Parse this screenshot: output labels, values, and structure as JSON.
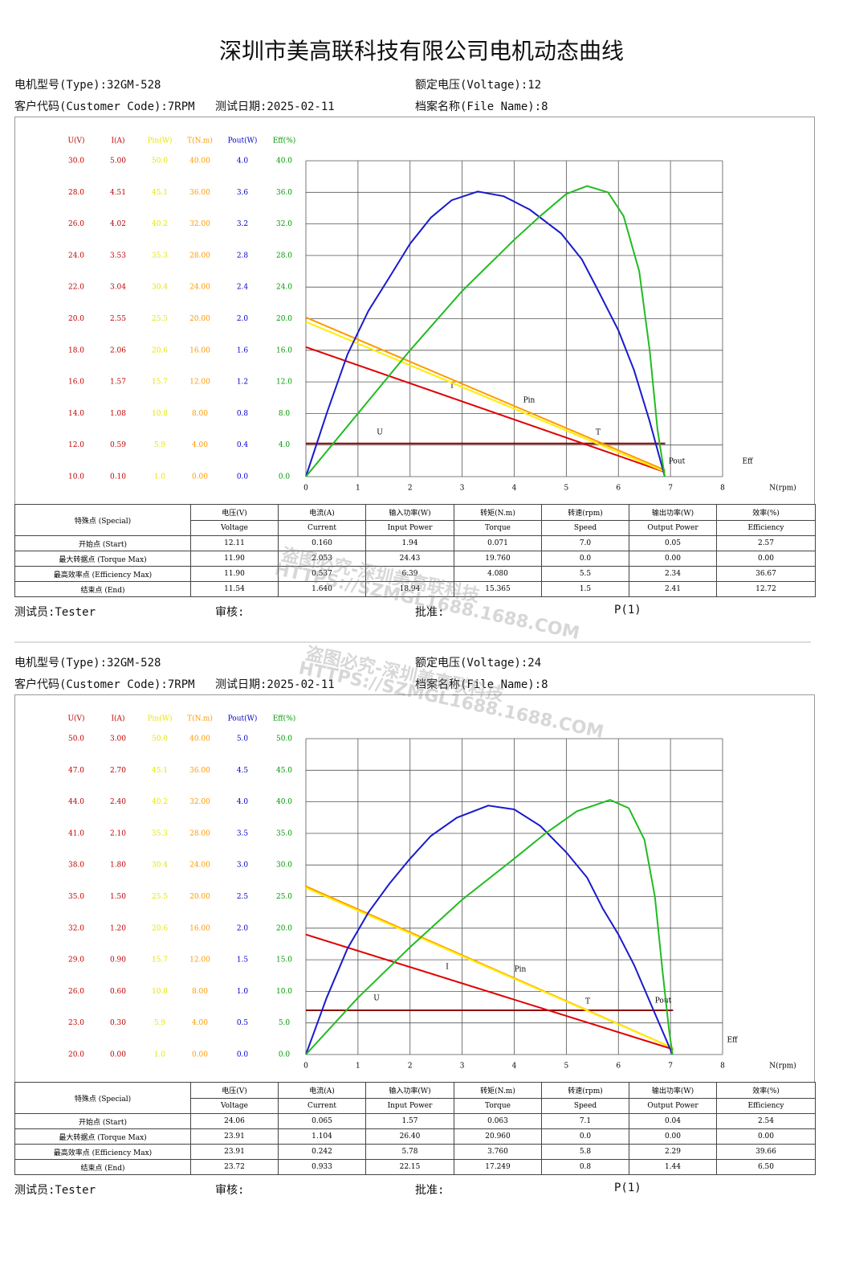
{
  "title": "深圳市美高联科技有限公司电机动态曲线",
  "watermark": [
    "盗图必究-深圳美高联科技",
    "HTTPS://SZMGL1688.1688.COM"
  ],
  "reports": [
    {
      "info": {
        "type": "电机型号(Type):32GM-528",
        "voltage": "额定电压(Voltage):12",
        "customer": "客户代码(Customer Code):7RPM",
        "date": "测试日期:2025-02-11",
        "file": "档案名称(File Name):8"
      },
      "table": {
        "header": [
          "特殊点 (Special)",
          "电压(V)",
          "电流(A)",
          "输入功率(W)",
          "转矩(N.m)",
          "转速(rpm)",
          "输出功率(W)",
          "效率(%)"
        ],
        "subheader": [
          "Voltage",
          "Current",
          "Input Power",
          "Torque",
          "Speed",
          "Output Power",
          "Efficiency"
        ],
        "rows": [
          [
            "开始点 (Start)",
            "12.11",
            "0.160",
            "1.94",
            "0.071",
            "7.0",
            "0.05",
            "2.57"
          ],
          [
            "最大转据点 (Torque Max)",
            "11.90",
            "2.053",
            "24.43",
            "19.760",
            "0.0",
            "0.00",
            "0.00"
          ],
          [
            "最高效率点 (Efficiency Max)",
            "11.90",
            "0.537",
            "6.39",
            "4.080",
            "5.5",
            "2.34",
            "36.67"
          ],
          [
            "结束点 (End)",
            "11.54",
            "1.640",
            "18.94",
            "15.365",
            "1.5",
            "2.41",
            "12.72"
          ]
        ]
      },
      "footer": [
        "测试员:Tester",
        "审核:",
        "批准:",
        "P(1)"
      ]
    },
    {
      "info": {
        "type": "电机型号(Type):32GM-528",
        "voltage": "额定电压(Voltage):24",
        "customer": "客户代码(Customer Code):7RPM",
        "date": "测试日期:2025-02-11",
        "file": "档案名称(File Name):8"
      },
      "table": {
        "header": [
          "特殊点 (Special)",
          "电压(V)",
          "电流(A)",
          "输入功率(W)",
          "转矩(N.m)",
          "转速(rpm)",
          "输出功率(W)",
          "效率(%)"
        ],
        "subheader": [
          "Voltage",
          "Current",
          "Input Power",
          "Torque",
          "Speed",
          "Output Power",
          "Efficiency"
        ],
        "rows": [
          [
            "开始点 (Start)",
            "24.06",
            "0.065",
            "1.57",
            "0.063",
            "7.1",
            "0.04",
            "2.54"
          ],
          [
            "最大转据点 (Torque Max)",
            "23.91",
            "1.104",
            "26.40",
            "20.960",
            "0.0",
            "0.00",
            "0.00"
          ],
          [
            "最高效率点 (Efficiency Max)",
            "23.91",
            "0.242",
            "5.78",
            "3.760",
            "5.8",
            "2.29",
            "39.66"
          ],
          [
            "结束点 (End)",
            "23.72",
            "0.933",
            "22.15",
            "17.249",
            "0.8",
            "1.44",
            "6.50"
          ]
        ]
      },
      "footer": [
        "测试员:Tester",
        "审核:",
        "批准:",
        "P(1)"
      ]
    }
  ],
  "chart_data": [
    {
      "type": "line",
      "grid": true,
      "x_label": "N(rpm)",
      "xlim": [
        0,
        8
      ],
      "xticks": [
        0,
        1,
        2,
        3,
        4,
        5,
        6,
        7,
        8
      ],
      "axes": [
        {
          "name": "U(V)",
          "color": "#c00000",
          "ylim": [
            10,
            30
          ],
          "yticks": [
            {
              "value": 10,
              "label": "10.0"
            },
            {
              "value": 12,
              "label": "12.0"
            },
            {
              "value": 14,
              "label": "14.0"
            },
            {
              "value": 16,
              "label": "16.0"
            },
            {
              "value": 18,
              "label": "18.0"
            },
            {
              "value": 20,
              "label": "20.0"
            },
            {
              "value": 22,
              "label": "22.0"
            },
            {
              "value": 24,
              "label": "24.0"
            },
            {
              "value": 26,
              "label": "26.0"
            },
            {
              "value": 28,
              "label": "28.0"
            },
            {
              "value": 30,
              "label": "30.0"
            }
          ]
        },
        {
          "name": "I(A)",
          "color": "#c00000",
          "ylim": [
            0.1,
            5
          ],
          "yticks": [
            {
              "value": 0.1,
              "label": "0.10"
            },
            0.59,
            1.08,
            1.57,
            2.06,
            2.55,
            3.04,
            3.53,
            4.02,
            4.51,
            {
              "value": 5,
              "label": "5.00"
            }
          ]
        },
        {
          "name": "Pin(W)",
          "color": "#e6e600",
          "ylim": [
            1,
            50
          ],
          "yticks": [
            {
              "value": 1,
              "label": "1.0"
            },
            5.9,
            10.8,
            15.7,
            20.6,
            25.5,
            30.4,
            35.3,
            40.2,
            45.1,
            {
              "value": 50,
              "label": "50.0"
            }
          ]
        },
        {
          "name": "T(N.m)",
          "color": "#ff9900",
          "ylim": [
            0,
            40
          ],
          "yticks": [
            {
              "value": 0,
              "label": "0.00"
            },
            {
              "value": 4,
              "label": "4.00"
            },
            {
              "value": 8,
              "label": "8.00"
            },
            {
              "value": 12,
              "label": "12.00"
            },
            {
              "value": 16,
              "label": "16.00"
            },
            {
              "value": 20,
              "label": "20.00"
            },
            {
              "value": 24,
              "label": "24.00"
            },
            {
              "value": 28,
              "label": "28.00"
            },
            {
              "value": 32,
              "label": "32.00"
            },
            {
              "value": 36,
              "label": "36.00"
            },
            {
              "value": 40,
              "label": "40.00"
            }
          ]
        },
        {
          "name": "Pout(W)",
          "color": "#0000cc",
          "ylim": [
            0,
            4
          ],
          "yticks": [
            {
              "value": 0,
              "label": "0.0"
            },
            0.4,
            0.8,
            1.2,
            1.6,
            {
              "value": 2,
              "label": "2.0"
            },
            2.4,
            2.8,
            3.2,
            3.6,
            {
              "value": 4,
              "label": "4.0"
            }
          ]
        },
        {
          "name": "Eff(%)",
          "color": "#009900",
          "ylim": [
            0,
            40
          ],
          "yticks": [
            {
              "value": 0,
              "label": "0.0"
            },
            {
              "value": 4,
              "label": "4.0"
            },
            {
              "value": 8,
              "label": "8.0"
            },
            {
              "value": 12,
              "label": "12.0"
            },
            {
              "value": 16,
              "label": "16.0"
            },
            {
              "value": 20,
              "label": "20.0"
            },
            {
              "value": 24,
              "label": "24.0"
            },
            {
              "value": 28,
              "label": "28.0"
            },
            {
              "value": 32,
              "label": "32.0"
            },
            {
              "value": 36,
              "label": "36.0"
            },
            {
              "value": 40,
              "label": "40.0"
            }
          ]
        }
      ],
      "series": [
        {
          "name": "U",
          "color": "#8b0000",
          "x": [
            0,
            6.9
          ],
          "values": [
            12.1,
            12.1
          ]
        },
        {
          "name": "I",
          "color": "#e00000",
          "x": [
            0,
            6.9
          ],
          "values": [
            2.11,
            0.17
          ]
        },
        {
          "name": "Pin",
          "color": "#ff9900",
          "x": [
            0,
            6.9
          ],
          "values": [
            25.7,
            2.0
          ]
        },
        {
          "name": "T",
          "color": "#ffee00",
          "x": [
            0,
            6.9
          ],
          "values": [
            19.6,
            0.6
          ]
        },
        {
          "name": "Pout",
          "color": "#1a1acc",
          "x": [
            0,
            0.4,
            0.8,
            1.2,
            1.6,
            2.0,
            2.4,
            2.8,
            3.3,
            3.8,
            4.3,
            4.9,
            5.3,
            5.6,
            6.0,
            6.3,
            6.6,
            6.89
          ],
          "values": [
            0,
            0.8,
            1.55,
            2.1,
            2.52,
            2.95,
            3.28,
            3.5,
            3.61,
            3.55,
            3.38,
            3.08,
            2.75,
            2.37,
            1.85,
            1.35,
            0.7,
            0
          ]
        },
        {
          "name": "Eff",
          "color": "#22bb22",
          "x": [
            0,
            1,
            2,
            3,
            4,
            4.5,
            5,
            5.4,
            5.8,
            6.1,
            6.4,
            6.6,
            6.75,
            6.89
          ],
          "values": [
            0,
            8,
            16,
            23.5,
            30,
            33,
            35.8,
            36.8,
            36,
            33,
            26,
            16,
            6,
            0
          ]
        }
      ]
    },
    {
      "type": "line",
      "grid": true,
      "x_label": "N(rpm)",
      "xlim": [
        0,
        8
      ],
      "xticks": [
        0,
        1,
        2,
        3,
        4,
        5,
        6,
        7,
        8
      ],
      "axes": [
        {
          "name": "U(V)",
          "color": "#c00000",
          "ylim": [
            20,
            50
          ],
          "yticks": [
            {
              "value": 20,
              "label": "20.0"
            },
            {
              "value": 23,
              "label": "23.0"
            },
            {
              "value": 26,
              "label": "26.0"
            },
            {
              "value": 29,
              "label": "29.0"
            },
            {
              "value": 32,
              "label": "32.0"
            },
            {
              "value": 35,
              "label": "35.0"
            },
            {
              "value": 38,
              "label": "38.0"
            },
            {
              "value": 41,
              "label": "41.0"
            },
            {
              "value": 44,
              "label": "44.0"
            },
            {
              "value": 47,
              "label": "47.0"
            },
            {
              "value": 50,
              "label": "50.0"
            }
          ]
        },
        {
          "name": "I(A)",
          "color": "#c00000",
          "ylim": [
            0,
            3
          ],
          "yticks": [
            {
              "value": 0,
              "label": "0.00"
            },
            {
              "value": 0.3,
              "label": "0.30"
            },
            {
              "value": 0.6,
              "label": "0.60"
            },
            {
              "value": 0.9,
              "label": "0.90"
            },
            {
              "value": 1.2,
              "label": "1.20"
            },
            {
              "value": 1.5,
              "label": "1.50"
            },
            {
              "value": 1.8,
              "label": "1.80"
            },
            {
              "value": 2.1,
              "label": "2.10"
            },
            {
              "value": 2.4,
              "label": "2.40"
            },
            {
              "value": 2.7,
              "label": "2.70"
            },
            {
              "value": 3,
              "label": "3.00"
            }
          ]
        },
        {
          "name": "Pin(W)",
          "color": "#e6e600",
          "ylim": [
            1,
            50
          ],
          "yticks": [
            {
              "value": 1,
              "label": "1.0"
            },
            5.9,
            10.8,
            15.7,
            20.6,
            25.5,
            30.4,
            35.3,
            40.2,
            45.1,
            {
              "value": 50,
              "label": "50.0"
            }
          ]
        },
        {
          "name": "T(N.m)",
          "color": "#ff9900",
          "ylim": [
            0,
            40
          ],
          "yticks": [
            {
              "value": 0,
              "label": "0.00"
            },
            {
              "value": 4,
              "label": "4.00"
            },
            {
              "value": 8,
              "label": "8.00"
            },
            {
              "value": 12,
              "label": "12.00"
            },
            {
              "value": 16,
              "label": "16.00"
            },
            {
              "value": 20,
              "label": "20.00"
            },
            {
              "value": 24,
              "label": "24.00"
            },
            {
              "value": 28,
              "label": "28.00"
            },
            {
              "value": 32,
              "label": "32.00"
            },
            {
              "value": 36,
              "label": "36.00"
            },
            {
              "value": 40,
              "label": "40.00"
            }
          ]
        },
        {
          "name": "Pout(W)",
          "color": "#0000cc",
          "ylim": [
            0,
            5
          ],
          "yticks": [
            {
              "value": 0,
              "label": "0.0"
            },
            0.5,
            {
              "value": 1,
              "label": "1.0"
            },
            1.5,
            {
              "value": 2,
              "label": "2.0"
            },
            2.5,
            {
              "value": 3,
              "label": "3.0"
            },
            3.5,
            {
              "value": 4,
              "label": "4.0"
            },
            4.5,
            {
              "value": 5,
              "label": "5.0"
            }
          ]
        },
        {
          "name": "Eff(%)",
          "color": "#009900",
          "ylim": [
            0,
            50
          ],
          "yticks": [
            {
              "value": 0,
              "label": "0.0"
            },
            {
              "value": 5,
              "label": "5.0"
            },
            {
              "value": 10,
              "label": "10.0"
            },
            {
              "value": 15,
              "label": "15.0"
            },
            {
              "value": 20,
              "label": "20.0"
            },
            {
              "value": 25,
              "label": "25.0"
            },
            {
              "value": 30,
              "label": "30.0"
            },
            {
              "value": 35,
              "label": "35.0"
            },
            {
              "value": 40,
              "label": "40.0"
            },
            {
              "value": 45,
              "label": "45.0"
            },
            {
              "value": 50,
              "label": "50.0"
            }
          ]
        }
      ],
      "series": [
        {
          "name": "U",
          "color": "#8b0000",
          "x": [
            0,
            7.05
          ],
          "values": [
            24.2,
            24.2
          ]
        },
        {
          "name": "I",
          "color": "#e00000",
          "x": [
            0,
            7.05
          ],
          "values": [
            1.14,
            0.05
          ]
        },
        {
          "name": "Pin",
          "color": "#ff9900",
          "x": [
            0,
            7.05
          ],
          "values": [
            27.1,
            2.0
          ]
        },
        {
          "name": "T",
          "color": "#ffee00",
          "x": [
            0,
            7.05
          ],
          "values": [
            21.1,
            0.8
          ]
        },
        {
          "name": "Pout",
          "color": "#1a1acc",
          "x": [
            0,
            0.4,
            0.8,
            1.2,
            1.6,
            2.0,
            2.4,
            2.9,
            3.5,
            4.0,
            4.5,
            5.0,
            5.4,
            5.7,
            6.0,
            6.3,
            6.7,
            7.04
          ],
          "values": [
            0,
            0.9,
            1.68,
            2.25,
            2.7,
            3.1,
            3.46,
            3.75,
            3.94,
            3.88,
            3.62,
            3.2,
            2.8,
            2.31,
            1.9,
            1.42,
            0.65,
            0
          ]
        },
        {
          "name": "Eff",
          "color": "#22bb22",
          "x": [
            0,
            1,
            2,
            3,
            4,
            4.6,
            5.2,
            5.84,
            6.2,
            6.5,
            6.7,
            6.85,
            6.97,
            7.04
          ],
          "values": [
            0,
            9,
            17,
            24.5,
            31,
            35,
            38.5,
            40.3,
            39,
            34,
            25,
            13,
            4,
            0
          ]
        }
      ]
    }
  ]
}
